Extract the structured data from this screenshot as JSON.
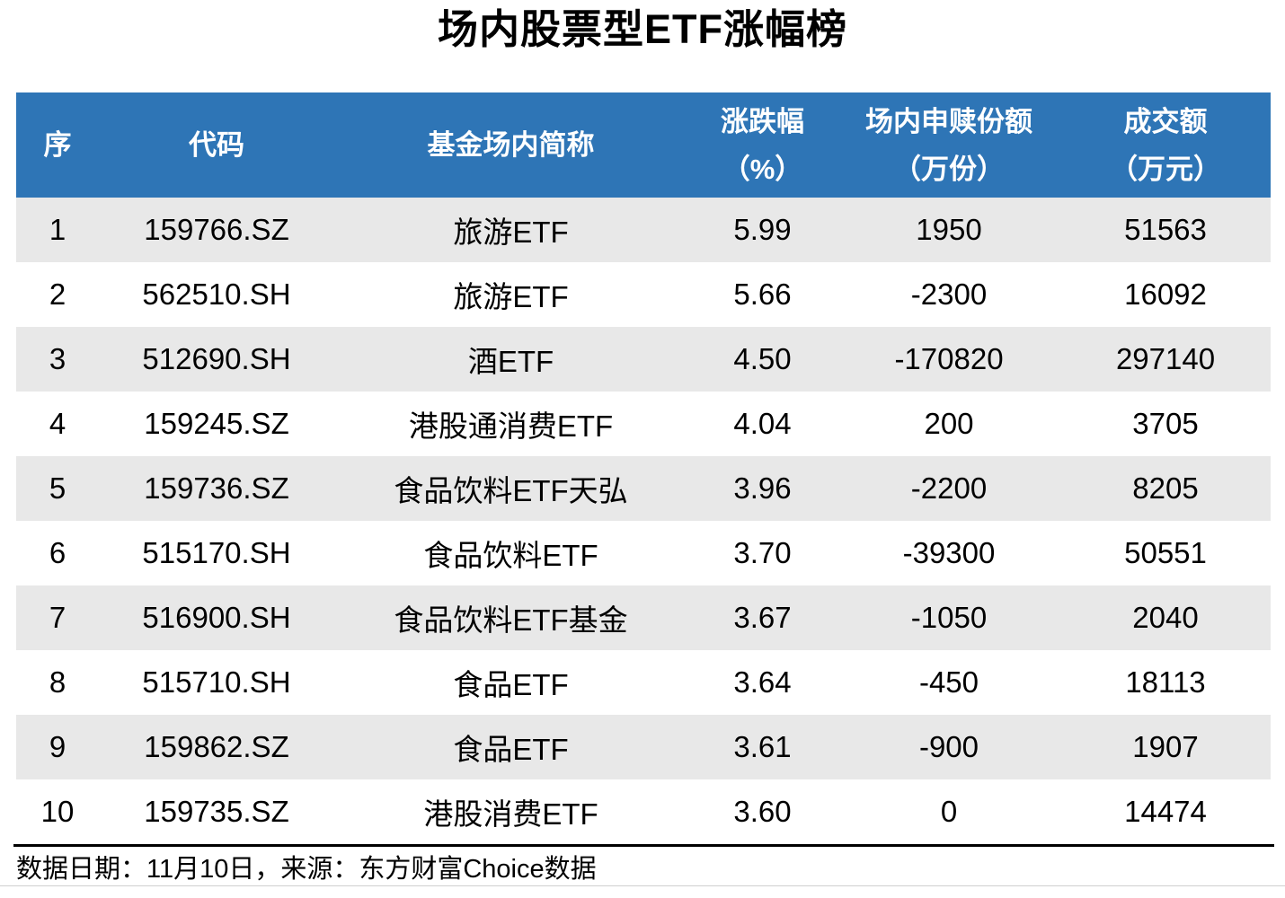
{
  "title": "场内股票型ETF涨幅榜",
  "colors": {
    "header_bg": "#2E75B6",
    "header_text": "#FFFFFF",
    "stripe_bg": "#E8E8E8",
    "body_text": "#000000",
    "footer_rule": "#000000",
    "bottom_line": "#CFCFCF"
  },
  "table": {
    "columns": [
      {
        "line1": "序",
        "line2": ""
      },
      {
        "line1": "代码",
        "line2": ""
      },
      {
        "line1": "基金场内简称",
        "line2": ""
      },
      {
        "line1": "涨跌幅",
        "line2": "（%）"
      },
      {
        "line1": "场内申赎份额",
        "line2": "（万份）"
      },
      {
        "line1": "成交额",
        "line2": "（万元）"
      }
    ],
    "rows": [
      [
        "1",
        "159766.SZ",
        "旅游ETF",
        "5.99",
        "1950",
        "51563"
      ],
      [
        "2",
        "562510.SH",
        "旅游ETF",
        "5.66",
        "-2300",
        "16092"
      ],
      [
        "3",
        "512690.SH",
        "酒ETF",
        "4.50",
        "-170820",
        "297140"
      ],
      [
        "4",
        "159245.SZ",
        "港股通消费ETF",
        "4.04",
        "200",
        "3705"
      ],
      [
        "5",
        "159736.SZ",
        "食品饮料ETF天弘",
        "3.96",
        "-2200",
        "8205"
      ],
      [
        "6",
        "515170.SH",
        "食品饮料ETF",
        "3.70",
        "-39300",
        "50551"
      ],
      [
        "7",
        "516900.SH",
        "食品饮料ETF基金",
        "3.67",
        "-1050",
        "2040"
      ],
      [
        "8",
        "515710.SH",
        "食品ETF",
        "3.64",
        "-450",
        "18113"
      ],
      [
        "9",
        "159862.SZ",
        "食品ETF",
        "3.61",
        "-900",
        "1907"
      ],
      [
        "10",
        "159735.SZ",
        "港股消费ETF",
        "3.60",
        "0",
        "14474"
      ]
    ]
  },
  "footer": {
    "text": "数据日期：11月10日，来源：东方财富Choice数据"
  },
  "chart_data": {
    "type": "table",
    "title": "场内股票型ETF涨幅榜",
    "columns": [
      "序",
      "代码",
      "基金场内简称",
      "涨跌幅（%）",
      "场内申赎份额（万份）",
      "成交额（万元）"
    ],
    "rows": [
      [
        1,
        "159766.SZ",
        "旅游ETF",
        5.99,
        1950,
        51563
      ],
      [
        2,
        "562510.SH",
        "旅游ETF",
        5.66,
        -2300,
        16092
      ],
      [
        3,
        "512690.SH",
        "酒ETF",
        4.5,
        -170820,
        297140
      ],
      [
        4,
        "159245.SZ",
        "港股通消费ETF",
        4.04,
        200,
        3705
      ],
      [
        5,
        "159736.SZ",
        "食品饮料ETF天弘",
        3.96,
        -2200,
        8205
      ],
      [
        6,
        "515170.SH",
        "食品饮料ETF",
        3.7,
        -39300,
        50551
      ],
      [
        7,
        "516900.SH",
        "食品饮料ETF基金",
        3.67,
        -1050,
        2040
      ],
      [
        8,
        "515710.SH",
        "食品ETF",
        3.64,
        -450,
        18113
      ],
      [
        9,
        "159862.SZ",
        "食品ETF",
        3.61,
        -900,
        1907
      ],
      [
        10,
        "159735.SZ",
        "港股消费ETF",
        3.6,
        0,
        14474
      ]
    ],
    "source_note": "数据日期：11月10日，来源：东方财富Choice数据",
    "layout": {
      "zebra_striping": true,
      "header_style": "blue-bar",
      "alignment": "center"
    }
  }
}
